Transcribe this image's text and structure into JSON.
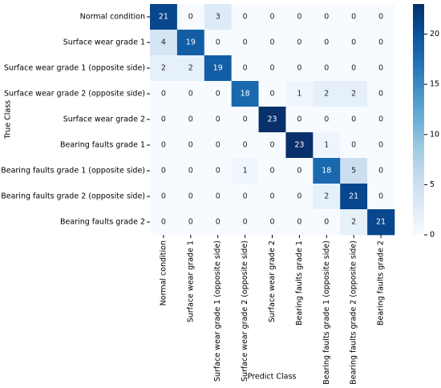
{
  "chart_data": {
    "type": "heatmap",
    "x_label": "Predict Class",
    "y_label": "True Class",
    "categories": [
      "Normal condition",
      "Surface wear grade 1",
      "Surface wear grade 1 (opposite side)",
      "Surface wear grade 2 (opposite side)",
      "Surface wear grade 2",
      "Bearing faults grade 1",
      "Bearing faults grade 1 (opposite side)",
      "Bearing faults grade 2 (opposite side)",
      "Bearing faults grade 2"
    ],
    "values": [
      [
        21,
        0,
        3,
        0,
        0,
        0,
        0,
        0,
        0
      ],
      [
        4,
        19,
        0,
        0,
        0,
        0,
        0,
        0,
        0
      ],
      [
        2,
        2,
        19,
        0,
        0,
        0,
        0,
        0,
        0
      ],
      [
        0,
        0,
        0,
        18,
        0,
        1,
        2,
        2,
        0
      ],
      [
        0,
        0,
        0,
        0,
        23,
        0,
        0,
        0,
        0
      ],
      [
        0,
        0,
        0,
        0,
        0,
        23,
        1,
        0,
        0
      ],
      [
        0,
        0,
        0,
        1,
        0,
        0,
        18,
        5,
        0
      ],
      [
        0,
        0,
        0,
        0,
        0,
        0,
        2,
        21,
        0
      ],
      [
        0,
        0,
        0,
        0,
        0,
        0,
        0,
        2,
        21
      ]
    ],
    "colormap": [
      "#f7fbff",
      "#deebf7",
      "#c6dbef",
      "#9ecae1",
      "#6baed6",
      "#4292c6",
      "#2171b5",
      "#08519c",
      "#08306b"
    ],
    "zlim": [
      0,
      23
    ],
    "zticks": [
      0,
      5,
      10,
      15,
      20
    ]
  }
}
